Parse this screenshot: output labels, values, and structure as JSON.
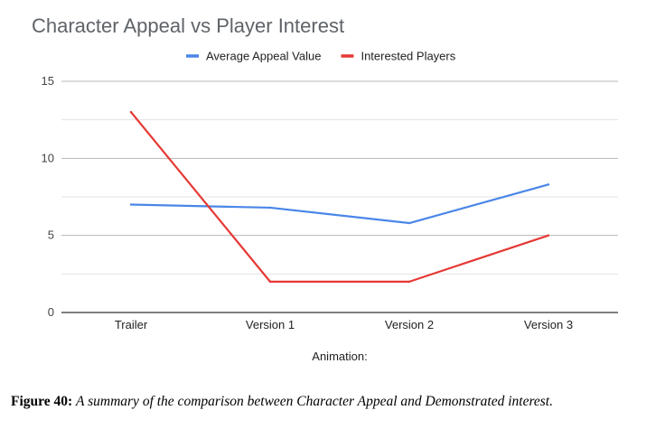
{
  "chart_data": {
    "type": "line",
    "title": "Character Appeal vs Player Interest",
    "xlabel": "Animation:",
    "ylabel": "",
    "categories": [
      "Trailer",
      "Version 1",
      "Version 2",
      "Version 3"
    ],
    "series": [
      {
        "name": "Average Appeal Value",
        "values": [
          7.0,
          6.8,
          5.8,
          8.3
        ],
        "color": "#4a86e8"
      },
      {
        "name": "Interested Players",
        "values": [
          13,
          2,
          2,
          5
        ],
        "color": "#e53935"
      }
    ],
    "ylim": [
      0,
      15
    ],
    "yticks": [
      0,
      5,
      10,
      15
    ],
    "grid": true,
    "legend": "top"
  },
  "caption": {
    "label": "Figure 40:",
    "text": "A summary of the comparison between Character Appeal and Demonstrated interest."
  }
}
